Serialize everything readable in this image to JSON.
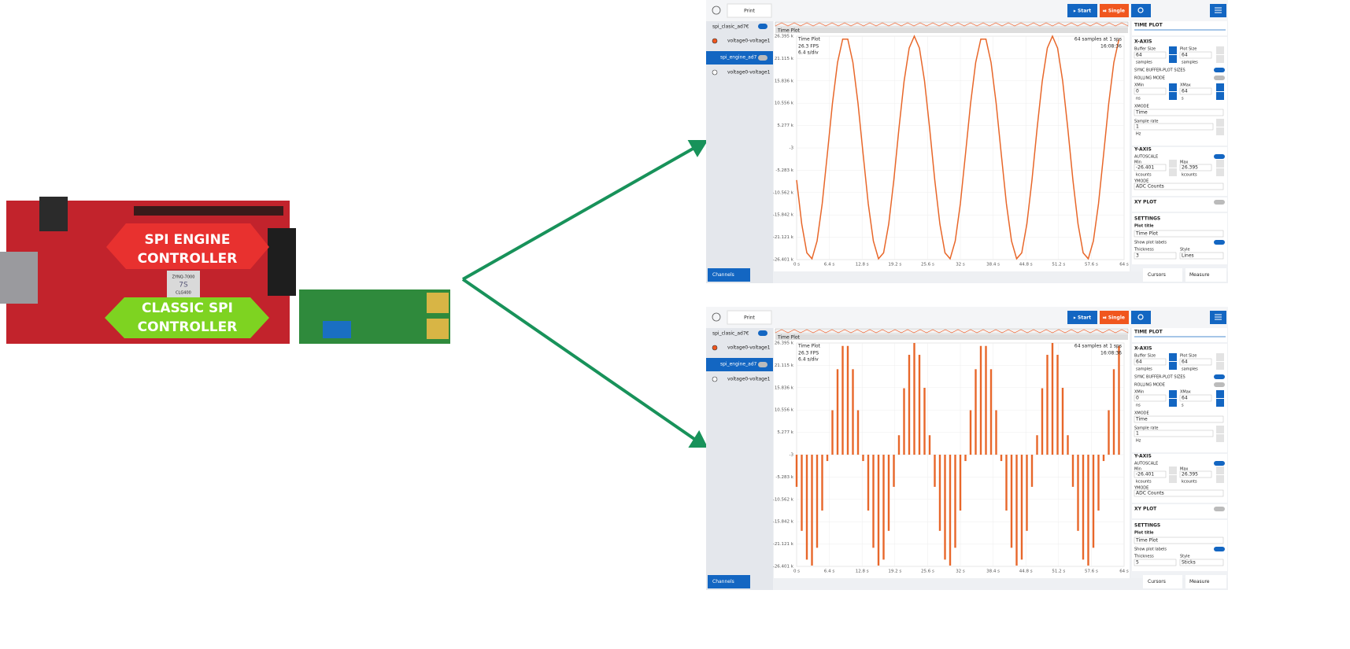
{
  "board": {
    "engine_label": [
      "SPI ENGINE",
      "CONTROLLER"
    ],
    "classic_label": [
      "CLASSIC SPI",
      "CONTROLLER"
    ],
    "chip": [
      "ZYNQ-7000",
      "7S",
      "CLG400"
    ]
  },
  "windows": [
    {
      "print": "Print",
      "start": "▸ Start",
      "single": "⏯ Single",
      "channels": {
        "device1": "spi_clasic_ad7€",
        "ch1": "voltage0-voltage1",
        "device2": "spi_engine_ad7",
        "ch2": "voltage0-voltage1"
      },
      "channels_button": "Channels",
      "plot_label": "Time Plot",
      "overlay": {
        "title": "Time Plot",
        "fps": "26.3 FPS",
        "div": "6.4 s/div",
        "samples": "64 samples at 1 sps",
        "time": "16:08:36"
      },
      "panel": {
        "time_plot": "TIME PLOT",
        "x_axis": "X-AXIS",
        "buffer_size": "Buffer Size",
        "buffer_value": "64",
        "buffer_unit": "samples",
        "plot_size": "Plot Size",
        "plot_value": "64",
        "plot_unit": "samples",
        "sync": "SYNC BUFFER-PLOT SIZES",
        "rolling": "ROLLING MODE",
        "xmin": "XMin",
        "xmin_value": "0",
        "xmin_unit": "ns",
        "xmax": "XMax",
        "xmax_value": "64",
        "xmax_unit": "s",
        "xmode": "XMODE",
        "xmode_value": "Time",
        "sample_rate": "Sample rate",
        "sample_rate_value": "1",
        "sample_rate_unit": "Hz",
        "y_axis": "Y-AXIS",
        "autoscale": "AUTOSCALE",
        "min": "Min",
        "min_value": "-26.401",
        "min_unit": "kcounts",
        "max": "Max",
        "max_value": "26.395",
        "max_unit": "kcounts",
        "ymode": "YMODE",
        "ymode_value": "ADC Counts",
        "xy_plot": "XY PLOT",
        "settings": "SETTINGS",
        "plot_title": "Plot title",
        "plot_title_value": "Time Plot",
        "show_labels": "Show plot labels",
        "thickness": "Thickness",
        "thickness_value": "3",
        "style": "Style",
        "style_value": "Lines",
        "cursors": "Cursors",
        "measure": "Measure"
      }
    },
    {
      "print": "Print",
      "start": "▸ Start",
      "single": "⏯ Single",
      "channels": {
        "device1": "spi_clasic_ad7€",
        "ch1": "voltage0-voltage1",
        "device2": "spi_engine_ad7",
        "ch2": "voltage0-voltage1"
      },
      "channels_button": "Channels",
      "plot_label": "Time Plot",
      "overlay": {
        "title": "Time Plot",
        "fps": "26.3 FPS",
        "div": "6.4 s/div",
        "samples": "64 samples at 1 sps",
        "time": "16:08:36"
      },
      "panel": {
        "time_plot": "TIME PLOT",
        "x_axis": "X-AXIS",
        "buffer_size": "Buffer Size",
        "buffer_value": "64",
        "buffer_unit": "samples",
        "plot_size": "Plot Size",
        "plot_value": "64",
        "plot_unit": "samples",
        "sync": "SYNC BUFFER-PLOT SIZES",
        "rolling": "ROLLING MODE",
        "xmin": "XMin",
        "xmin_value": "0",
        "xmin_unit": "ns",
        "xmax": "XMax",
        "xmax_value": "64",
        "xmax_unit": "s",
        "xmode": "XMODE",
        "xmode_value": "Time",
        "sample_rate": "Sample rate",
        "sample_rate_value": "1",
        "sample_rate_unit": "Hz",
        "y_axis": "Y-AXIS",
        "autoscale": "AUTOSCALE",
        "min": "Min",
        "min_value": "-26.401",
        "min_unit": "kcounts",
        "max": "Max",
        "max_value": "26.395",
        "max_unit": "kcounts",
        "ymode": "YMODE",
        "ymode_value": "ADC Counts",
        "xy_plot": "XY PLOT",
        "settings": "SETTINGS",
        "plot_title": "Plot title",
        "plot_title_value": "Time Plot",
        "show_labels": "Show plot labels",
        "thickness": "Thickness",
        "thickness_value": "5",
        "style": "Style",
        "style_value": "Sticks",
        "cursors": "Cursors",
        "measure": "Measure"
      }
    }
  ],
  "chart_data": [
    {
      "type": "line",
      "color": "#e8672a",
      "grid": true,
      "x": [
        0,
        1,
        2,
        3,
        4,
        5,
        6,
        7,
        8,
        9,
        10,
        11,
        12,
        13,
        14,
        15,
        16,
        17,
        18,
        19,
        20,
        21,
        22,
        23,
        24,
        25,
        26,
        27,
        28,
        29,
        30,
        31,
        32,
        33,
        34,
        35,
        36,
        37,
        38,
        39,
        40,
        41,
        42,
        43,
        44,
        45,
        46,
        47,
        48,
        49,
        50,
        51,
        52,
        53,
        54,
        55,
        56,
        57,
        58,
        59,
        60,
        61,
        62,
        63
      ],
      "values": [
        -7.6,
        -18.0,
        -24.8,
        -26.2,
        -22.0,
        -13.2,
        -1.5,
        10.5,
        20.2,
        25.7,
        25.7,
        20.2,
        10.5,
        -1.5,
        -13.2,
        -22.0,
        -26.2,
        -24.8,
        -18.0,
        -7.6,
        4.6,
        15.7,
        23.6,
        26.4,
        23.6,
        15.8,
        4.6,
        -7.6,
        -18.0,
        -24.8,
        -26.2,
        -22.0,
        -13.2,
        -1.5,
        10.5,
        20.2,
        25.7,
        25.7,
        20.2,
        10.5,
        -1.5,
        -13.2,
        -22.0,
        -26.2,
        -24.8,
        -18.0,
        -7.6,
        4.6,
        15.7,
        23.6,
        26.4,
        23.6,
        15.8,
        4.6,
        -7.6,
        -18.0,
        -24.8,
        -26.2,
        -22.0,
        -13.2,
        -1.5,
        10.5,
        20.2,
        25.7
      ],
      "xlim": [
        0,
        64
      ],
      "ylim": [
        -26.401,
        26.395
      ],
      "xticks": [
        {
          "value": 0,
          "label": "0 s"
        },
        {
          "value": 6.4,
          "label": "6.4 s"
        },
        {
          "value": 12.8,
          "label": "12.8 s"
        },
        {
          "value": 19.2,
          "label": "19.2 s"
        },
        {
          "value": 25.6,
          "label": "25.6 s"
        },
        {
          "value": 32,
          "label": "32 s"
        },
        {
          "value": 38.4,
          "label": "38.4 s"
        },
        {
          "value": 44.8,
          "label": "44.8 s"
        },
        {
          "value": 51.2,
          "label": "51.2 s"
        },
        {
          "value": 57.6,
          "label": "57.6 s"
        },
        {
          "value": 64,
          "label": "64 s"
        }
      ],
      "yticks": [
        {
          "value": 26.395,
          "label": "26.395 k"
        },
        {
          "value": 21.115,
          "label": "21.115 k"
        },
        {
          "value": 15.836,
          "label": "15.836 k"
        },
        {
          "value": 10.556,
          "label": "10.556 k"
        },
        {
          "value": 5.277,
          "label": "5.277 k"
        },
        {
          "value": -0.003,
          "label": "-3"
        },
        {
          "value": -5.283,
          "label": "-5.283 k"
        },
        {
          "value": -10.562,
          "label": "-10.562 k"
        },
        {
          "value": -15.842,
          "label": "-15.842 k"
        },
        {
          "value": -21.121,
          "label": "-21.121 k"
        },
        {
          "value": -26.401,
          "label": "-26.401 k"
        }
      ]
    },
    {
      "type": "stem",
      "color": "#e8672a",
      "grid": true,
      "x": [
        0,
        1,
        2,
        3,
        4,
        5,
        6,
        7,
        8,
        9,
        10,
        11,
        12,
        13,
        14,
        15,
        16,
        17,
        18,
        19,
        20,
        21,
        22,
        23,
        24,
        25,
        26,
        27,
        28,
        29,
        30,
        31,
        32,
        33,
        34,
        35,
        36,
        37,
        38,
        39,
        40,
        41,
        42,
        43,
        44,
        45,
        46,
        47,
        48,
        49,
        50,
        51,
        52,
        53,
        54,
        55,
        56,
        57,
        58,
        59,
        60,
        61,
        62,
        63
      ],
      "values": [
        -7.6,
        -18.0,
        -24.8,
        -26.2,
        -22.0,
        -13.2,
        -1.5,
        10.5,
        20.2,
        25.7,
        25.7,
        20.2,
        10.5,
        -1.5,
        -13.2,
        -22.0,
        -26.2,
        -24.8,
        -18.0,
        -7.6,
        4.6,
        15.7,
        23.6,
        26.4,
        23.6,
        15.8,
        4.6,
        -7.6,
        -18.0,
        -24.8,
        -26.2,
        -22.0,
        -13.2,
        -1.5,
        10.5,
        20.2,
        25.7,
        25.7,
        20.2,
        10.5,
        -1.5,
        -13.2,
        -22.0,
        -26.2,
        -24.8,
        -18.0,
        -7.6,
        4.6,
        15.7,
        23.6,
        26.4,
        23.6,
        15.8,
        4.6,
        -7.6,
        -18.0,
        -24.8,
        -26.2,
        -22.0,
        -13.2,
        -1.5,
        10.5,
        20.2,
        25.7
      ],
      "xlim": [
        0,
        64
      ],
      "ylim": [
        -26.401,
        26.395
      ],
      "xticks": [
        {
          "value": 0,
          "label": "0 s"
        },
        {
          "value": 6.4,
          "label": "6.4 s"
        },
        {
          "value": 12.8,
          "label": "12.8 s"
        },
        {
          "value": 19.2,
          "label": "19.2 s"
        },
        {
          "value": 25.6,
          "label": "25.6 s"
        },
        {
          "value": 32,
          "label": "32 s"
        },
        {
          "value": 38.4,
          "label": "38.4 s"
        },
        {
          "value": 44.8,
          "label": "44.8 s"
        },
        {
          "value": 51.2,
          "label": "51.2 s"
        },
        {
          "value": 57.6,
          "label": "57.6 s"
        },
        {
          "value": 64,
          "label": "64 s"
        }
      ],
      "yticks": [
        {
          "value": 26.395,
          "label": "26.395 k"
        },
        {
          "value": 21.115,
          "label": "21.115 k"
        },
        {
          "value": 15.836,
          "label": "15.836 k"
        },
        {
          "value": 10.556,
          "label": "10.556 k"
        },
        {
          "value": 5.277,
          "label": "5.277 k"
        },
        {
          "value": -0.003,
          "label": "-3"
        },
        {
          "value": -5.283,
          "label": "-5.283 k"
        },
        {
          "value": -10.562,
          "label": "-10.562 k"
        },
        {
          "value": -15.842,
          "label": "-15.842 k"
        },
        {
          "value": -21.121,
          "label": "-21.121 k"
        },
        {
          "value": -26.401,
          "label": "-26.401 k"
        }
      ]
    }
  ]
}
